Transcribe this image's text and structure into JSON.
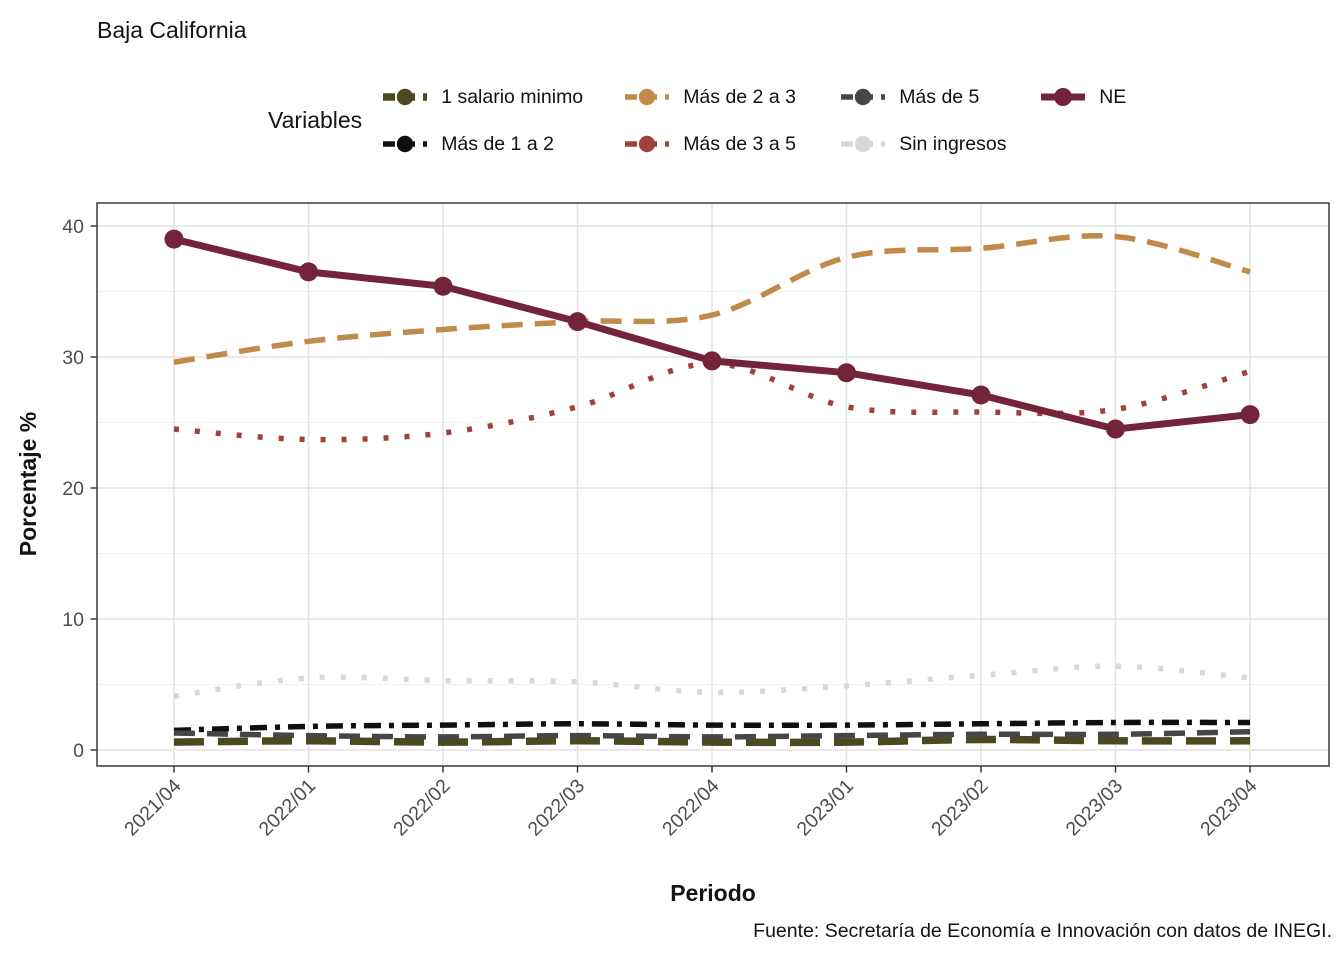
{
  "title": "Baja California",
  "caption": "Fuente: Secretaría de Economía e Innovación con datos de INEGI.",
  "legend": {
    "title": "Variables",
    "position": "top"
  },
  "axes": {
    "x": {
      "title": "Periodo"
    },
    "y": {
      "title": "Porcentaje %",
      "ticks": [
        0,
        10,
        20,
        30,
        40
      ]
    }
  },
  "colors": {
    "tick_text": "#4D4D4D",
    "panel_border": "#2E2E2E",
    "grid_major": "#E4E4E4",
    "grid_minor": "#F1F1F1"
  },
  "chart_data": {
    "type": "line",
    "title": "Baja California",
    "xlabel": "Periodo",
    "ylabel": "Porcentaje %",
    "ylim": [
      0,
      41
    ],
    "grid": true,
    "legend_position": "top",
    "categories": [
      "2021/04",
      "2022/01",
      "2022/02",
      "2022/03",
      "2022/04",
      "2023/01",
      "2023/02",
      "2023/03",
      "2023/04"
    ],
    "series": [
      {
        "name": "1 salario minimo",
        "color": "#4A491F",
        "linetype": "longdash",
        "values": [
          0.6,
          0.7,
          0.6,
          0.7,
          0.6,
          0.6,
          0.8,
          0.7,
          0.7
        ]
      },
      {
        "name": "Más de 1 a 2",
        "color": "#0F0F0F",
        "linetype": "dashdot",
        "values": [
          1.5,
          1.8,
          1.9,
          2.0,
          1.9,
          1.9,
          2.0,
          2.1,
          2.1
        ]
      },
      {
        "name": "Más de 2 a 3",
        "color": "#C08A4B",
        "linetype": "dashed",
        "values": [
          29.6,
          31.2,
          32.1,
          32.7,
          33.2,
          37.6,
          38.3,
          39.2,
          36.5
        ]
      },
      {
        "name": "Más de 3 a 5",
        "color": "#A2413C",
        "linetype": "dotted",
        "values": [
          24.5,
          23.7,
          24.2,
          26.2,
          29.5,
          26.2,
          25.8,
          26.0,
          28.9
        ]
      },
      {
        "name": "Más de 5",
        "color": "#464646",
        "linetype": "dashed",
        "values": [
          1.3,
          1.1,
          1.0,
          1.1,
          1.0,
          1.1,
          1.2,
          1.2,
          1.4
        ]
      },
      {
        "name": "Sin ingresos",
        "color": "#D8D8D8",
        "linetype": "dotted",
        "values": [
          4.1,
          5.5,
          5.3,
          5.2,
          4.4,
          4.9,
          5.7,
          6.4,
          5.5
        ]
      },
      {
        "name": "NE",
        "color": "#73243B",
        "linetype": "solid",
        "points": true,
        "values": [
          39.0,
          36.5,
          35.4,
          32.7,
          29.7,
          28.8,
          27.1,
          24.5,
          25.6
        ]
      }
    ]
  }
}
